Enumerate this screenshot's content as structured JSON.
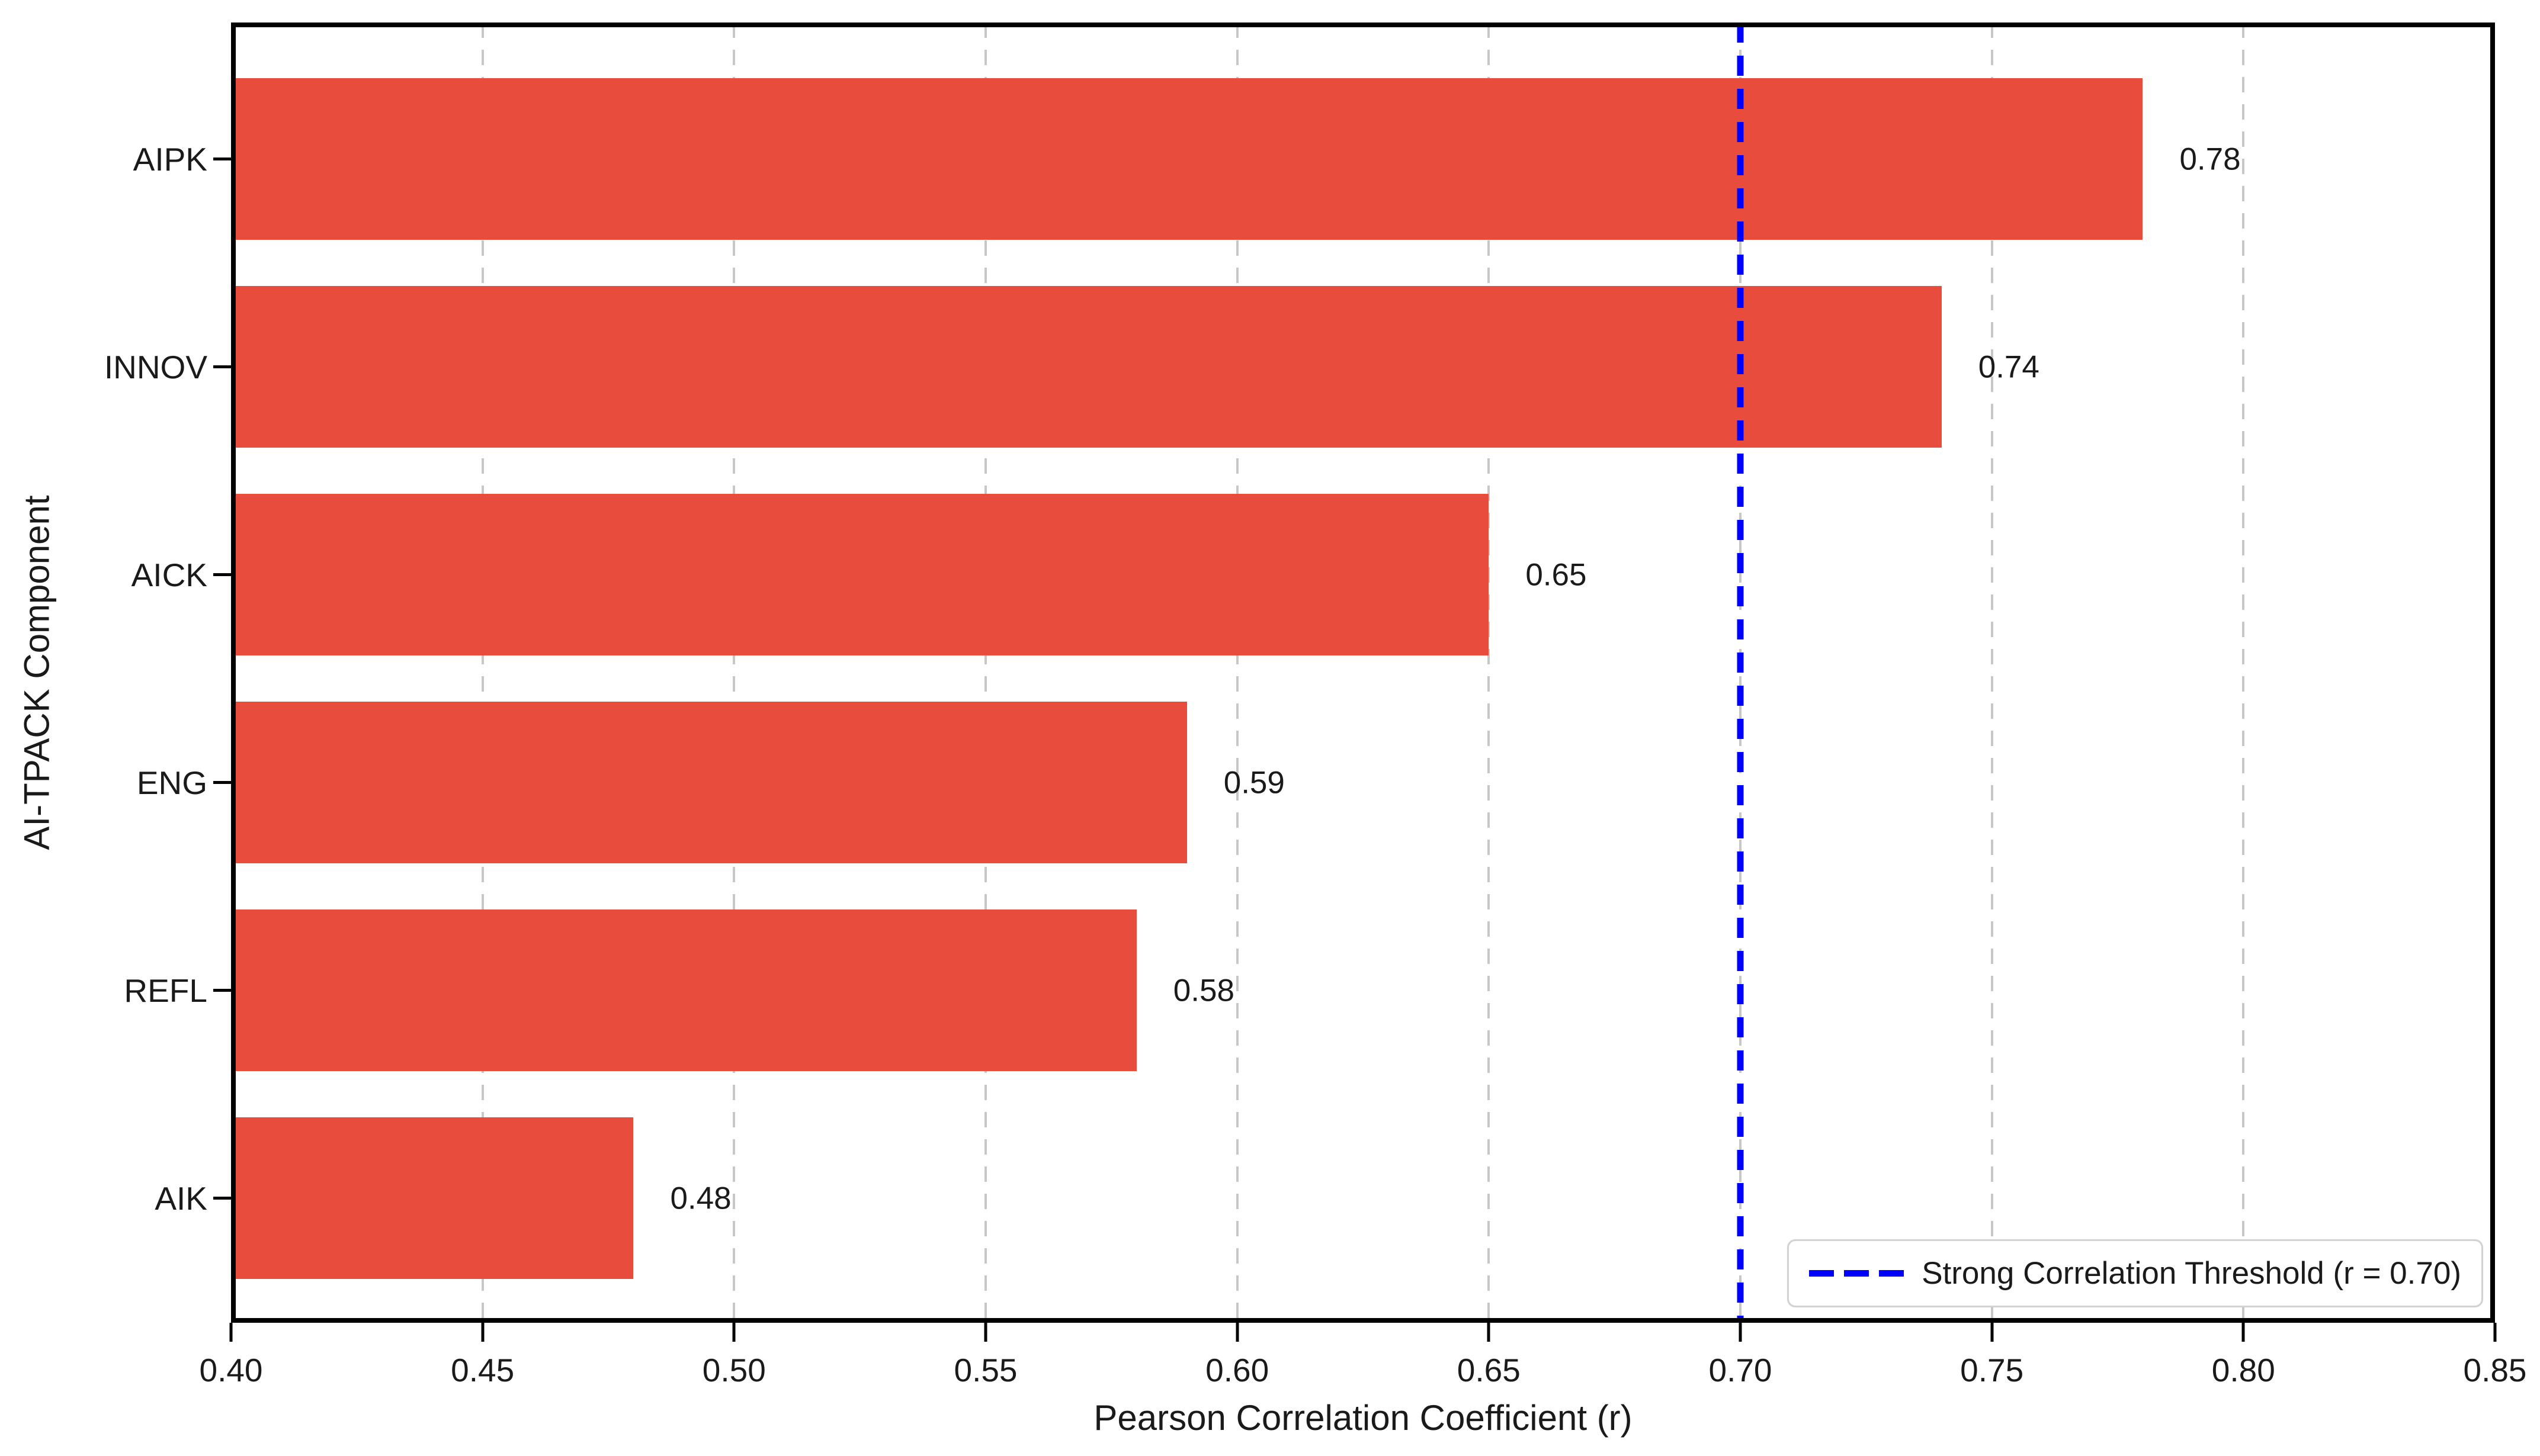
{
  "chart_data": {
    "type": "bar",
    "orientation": "horizontal",
    "title": "",
    "xlabel": "Pearson Correlation Coefficient (r)",
    "ylabel": "AI-TPACK Component",
    "categories": [
      "AIPK",
      "INNOV",
      "AICK",
      "ENG",
      "REFL",
      "AIK"
    ],
    "values": [
      0.78,
      0.74,
      0.65,
      0.59,
      0.58,
      0.48
    ],
    "value_labels": [
      "0.78",
      "0.74",
      "0.65",
      "0.59",
      "0.58",
      "0.48"
    ],
    "xlim": [
      0.4,
      0.85
    ],
    "xtick_labels": [
      "0.40",
      "0.45",
      "0.50",
      "0.55",
      "0.60",
      "0.65",
      "0.70",
      "0.75",
      "0.80",
      "0.85"
    ],
    "grid": "vertical dashed gridlines on",
    "legend_position": "lower right",
    "bar_color": "#e74c3c",
    "gridline_color": "#c7c7c7",
    "threshold": {
      "value": 0.7,
      "label": "Strong Correlation Threshold (r = 0.70)",
      "color": "#0000ff",
      "style": "dashed"
    }
  }
}
